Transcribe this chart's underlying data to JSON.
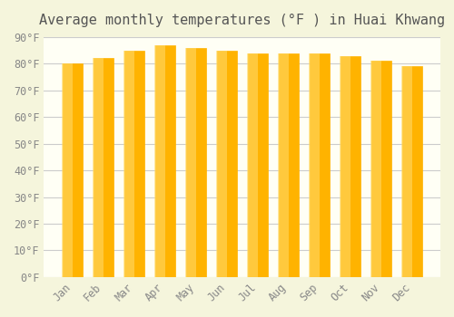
{
  "title": "Average monthly temperatures (°F ) in Huai Khwang",
  "months": [
    "Jan",
    "Feb",
    "Mar",
    "Apr",
    "May",
    "Jun",
    "Jul",
    "Aug",
    "Sep",
    "Oct",
    "Nov",
    "Dec"
  ],
  "values": [
    80,
    82,
    85,
    87,
    86,
    85,
    84,
    84,
    84,
    83,
    81,
    79
  ],
  "bar_color_top": "#FFC200",
  "bar_color_bottom": "#FFD966",
  "background_color": "#F5F5DC",
  "plot_bg_color": "#FFFFF0",
  "ylim": [
    0,
    90
  ],
  "yticks": [
    0,
    10,
    20,
    30,
    40,
    50,
    60,
    70,
    80,
    90
  ],
  "ytick_labels": [
    "0°F",
    "10°F",
    "20°F",
    "30°F",
    "40°F",
    "50°F",
    "60°F",
    "70°F",
    "80°F",
    "90°F"
  ],
  "title_fontsize": 11,
  "tick_fontsize": 8.5,
  "grid_color": "#CCCCCC",
  "bar_edge_color": "#E8A000"
}
